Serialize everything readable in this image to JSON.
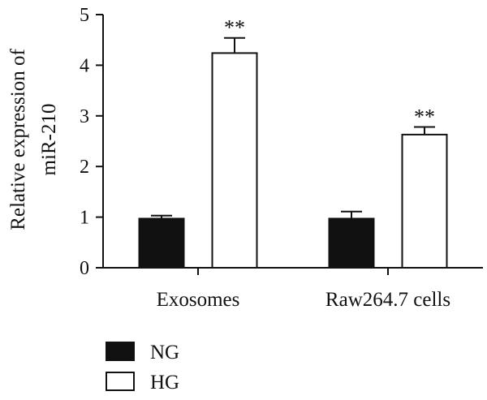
{
  "chart_data": {
    "type": "bar",
    "ylabel_lines": [
      "Relative expression of",
      "miR-210"
    ],
    "xlabel": "",
    "ylim": [
      0,
      5
    ],
    "yticks": [
      "0",
      "1",
      "2",
      "3",
      "4",
      "5"
    ],
    "categories": [
      "Exosomes",
      "Raw264.7 cells"
    ],
    "series": [
      {
        "name": "NG",
        "color": "#111111",
        "fill": "solid",
        "values": [
          0.97,
          0.97
        ],
        "errors": [
          0.06,
          0.14
        ],
        "significance": [
          "",
          ""
        ]
      },
      {
        "name": "HG",
        "color": "#ffffff",
        "fill": "outline",
        "values": [
          4.24,
          2.63
        ],
        "errors": [
          0.3,
          0.15
        ],
        "significance": [
          "**",
          "**"
        ]
      }
    ],
    "legend": {
      "placement": "bottom-left",
      "entries": [
        "NG",
        "HG"
      ]
    },
    "grid": false
  }
}
